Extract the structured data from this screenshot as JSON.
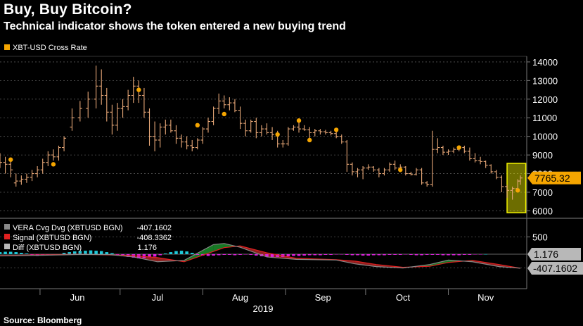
{
  "page": {
    "title": "Buy, Buy Bitcoin?",
    "subtitle": "Technical indicator shows the token entered a new buying trend",
    "source": "Source: Bloomberg"
  },
  "colors": {
    "background": "#000000",
    "candle": "#e8a878",
    "signal_dot": "#f5a500",
    "price_tag": "#f5a500",
    "highlight": "#f2f200",
    "pos_hist": "#1fc8d8",
    "neg_hist": "#e020e0",
    "vera_line": "#888888",
    "signal_line": "#e02020",
    "fill_bull": "#1fa030",
    "fill_bear": "#c02a2a",
    "gray_tag": "#b8b8b8"
  },
  "chart_data": [
    {
      "type": "candlestick",
      "legend": "XBT-USD Cross Rate",
      "last_value_label": "7765.32",
      "y_ticks": [
        6000,
        7000,
        8000,
        9000,
        10000,
        11000,
        12000,
        13000,
        14000
      ],
      "ylim": [
        5600,
        14300
      ],
      "x_month_labels": [
        "Jun",
        "Jul",
        "Aug",
        "Sep",
        "Oct",
        "Nov"
      ],
      "x_year_label": "2019",
      "x_range": [
        "2019-05-17",
        "2019-11-28"
      ],
      "candles": [
        {
          "d": "2019-05-17",
          "o": 8700,
          "h": 9100,
          "l": 8300,
          "c": 8600
        },
        {
          "d": "2019-05-19",
          "o": 8600,
          "h": 8900,
          "l": 8000,
          "c": 8500
        },
        {
          "d": "2019-05-21",
          "o": 8500,
          "h": 8700,
          "l": 7800,
          "c": 8200
        },
        {
          "d": "2019-05-23",
          "o": 7500,
          "h": 8000,
          "l": 7300,
          "c": 7600
        },
        {
          "d": "2019-05-25",
          "o": 7600,
          "h": 7900,
          "l": 7400,
          "c": 7700
        },
        {
          "d": "2019-05-27",
          "o": 7700,
          "h": 8000,
          "l": 7500,
          "c": 7800
        },
        {
          "d": "2019-05-29",
          "o": 7800,
          "h": 8200,
          "l": 7600,
          "c": 8000
        },
        {
          "d": "2019-05-31",
          "o": 8000,
          "h": 8400,
          "l": 7800,
          "c": 8200
        },
        {
          "d": "2019-06-02",
          "o": 8200,
          "h": 8800,
          "l": 8000,
          "c": 8600
        },
        {
          "d": "2019-06-04",
          "o": 8600,
          "h": 9200,
          "l": 8400,
          "c": 9000
        },
        {
          "d": "2019-06-06",
          "o": 9000,
          "h": 9300,
          "l": 8700,
          "c": 8900
        },
        {
          "d": "2019-06-08",
          "o": 8900,
          "h": 9500,
          "l": 8700,
          "c": 9400
        },
        {
          "d": "2019-06-10",
          "o": 9400,
          "h": 10000,
          "l": 9200,
          "c": 9900
        },
        {
          "d": "2019-06-13",
          "o": 10500,
          "h": 11500,
          "l": 10300,
          "c": 11000
        },
        {
          "d": "2019-06-16",
          "o": 11000,
          "h": 11900,
          "l": 10800,
          "c": 11500
        },
        {
          "d": "2019-06-19",
          "o": 11500,
          "h": 12400,
          "l": 11000,
          "c": 12000
        },
        {
          "d": "2019-06-22",
          "o": 12000,
          "h": 13800,
          "l": 11500,
          "c": 12700
        },
        {
          "d": "2019-06-24",
          "o": 12700,
          "h": 13600,
          "l": 11700,
          "c": 12200
        },
        {
          "d": "2019-06-26",
          "o": 12200,
          "h": 12600,
          "l": 10800,
          "c": 11300
        },
        {
          "d": "2019-06-28",
          "o": 11300,
          "h": 11700,
          "l": 10100,
          "c": 10600
        },
        {
          "d": "2019-06-30",
          "o": 10600,
          "h": 11800,
          "l": 10300,
          "c": 11500
        },
        {
          "d": "2019-07-02",
          "o": 11500,
          "h": 12000,
          "l": 11000,
          "c": 11600
        },
        {
          "d": "2019-07-04",
          "o": 11600,
          "h": 12500,
          "l": 11400,
          "c": 12200
        },
        {
          "d": "2019-07-06",
          "o": 12200,
          "h": 13200,
          "l": 11800,
          "c": 12700
        },
        {
          "d": "2019-07-08",
          "o": 12700,
          "h": 13000,
          "l": 11800,
          "c": 12200
        },
        {
          "d": "2019-07-10",
          "o": 12200,
          "h": 12600,
          "l": 11000,
          "c": 11300
        },
        {
          "d": "2019-07-12",
          "o": 11300,
          "h": 11500,
          "l": 9500,
          "c": 10000
        },
        {
          "d": "2019-07-14",
          "o": 10000,
          "h": 10800,
          "l": 9200,
          "c": 9800
        },
        {
          "d": "2019-07-16",
          "o": 9800,
          "h": 10700,
          "l": 9400,
          "c": 10500
        },
        {
          "d": "2019-07-18",
          "o": 10500,
          "h": 10900,
          "l": 10100,
          "c": 10600
        },
        {
          "d": "2019-07-20",
          "o": 10600,
          "h": 10900,
          "l": 10200,
          "c": 10300
        },
        {
          "d": "2019-07-22",
          "o": 10300,
          "h": 10600,
          "l": 9600,
          "c": 9900
        },
        {
          "d": "2019-07-24",
          "o": 9900,
          "h": 10100,
          "l": 9400,
          "c": 9700
        },
        {
          "d": "2019-07-26",
          "o": 9700,
          "h": 10000,
          "l": 9300,
          "c": 9500
        },
        {
          "d": "2019-07-28",
          "o": 9500,
          "h": 9800,
          "l": 9200,
          "c": 9400
        },
        {
          "d": "2019-07-30",
          "o": 9400,
          "h": 9900,
          "l": 9300,
          "c": 9800
        },
        {
          "d": "2019-08-01",
          "o": 9800,
          "h": 10500,
          "l": 9600,
          "c": 10400
        },
        {
          "d": "2019-08-03",
          "o": 10400,
          "h": 11000,
          "l": 10200,
          "c": 10800
        },
        {
          "d": "2019-08-05",
          "o": 10800,
          "h": 11600,
          "l": 10600,
          "c": 11500
        },
        {
          "d": "2019-08-07",
          "o": 11500,
          "h": 12300,
          "l": 11200,
          "c": 11900
        },
        {
          "d": "2019-08-09",
          "o": 11900,
          "h": 12200,
          "l": 11500,
          "c": 11700
        },
        {
          "d": "2019-08-11",
          "o": 11700,
          "h": 12100,
          "l": 11400,
          "c": 11800
        },
        {
          "d": "2019-08-13",
          "o": 11800,
          "h": 12000,
          "l": 11300,
          "c": 11400
        },
        {
          "d": "2019-08-15",
          "o": 11400,
          "h": 11600,
          "l": 10400,
          "c": 10700
        },
        {
          "d": "2019-08-17",
          "o": 10700,
          "h": 10900,
          "l": 10000,
          "c": 10300
        },
        {
          "d": "2019-08-19",
          "o": 10300,
          "h": 10900,
          "l": 10200,
          "c": 10800
        },
        {
          "d": "2019-08-21",
          "o": 10800,
          "h": 11000,
          "l": 9900,
          "c": 10200
        },
        {
          "d": "2019-08-23",
          "o": 10200,
          "h": 10600,
          "l": 10000,
          "c": 10400
        },
        {
          "d": "2019-08-25",
          "o": 10400,
          "h": 10700,
          "l": 10100,
          "c": 10200
        },
        {
          "d": "2019-08-27",
          "o": 10200,
          "h": 10500,
          "l": 9800,
          "c": 10100
        },
        {
          "d": "2019-08-29",
          "o": 10100,
          "h": 10300,
          "l": 9400,
          "c": 9600
        },
        {
          "d": "2019-08-31",
          "o": 9600,
          "h": 9800,
          "l": 9400,
          "c": 9600
        },
        {
          "d": "2019-09-02",
          "o": 9600,
          "h": 10500,
          "l": 9500,
          "c": 10400
        },
        {
          "d": "2019-09-04",
          "o": 10400,
          "h": 10600,
          "l": 10300,
          "c": 10500
        },
        {
          "d": "2019-09-06",
          "o": 10500,
          "h": 10900,
          "l": 10200,
          "c": 10400
        },
        {
          "d": "2019-09-08",
          "o": 10400,
          "h": 10600,
          "l": 10300,
          "c": 10350
        },
        {
          "d": "2019-09-10",
          "o": 10350,
          "h": 10500,
          "l": 9900,
          "c": 10200
        },
        {
          "d": "2019-09-12",
          "o": 10200,
          "h": 10400,
          "l": 10000,
          "c": 10300
        },
        {
          "d": "2019-09-14",
          "o": 10300,
          "h": 10400,
          "l": 10100,
          "c": 10250
        },
        {
          "d": "2019-09-16",
          "o": 10250,
          "h": 10350,
          "l": 10100,
          "c": 10200
        },
        {
          "d": "2019-09-18",
          "o": 10200,
          "h": 10300,
          "l": 10050,
          "c": 10150
        },
        {
          "d": "2019-09-20",
          "o": 10150,
          "h": 10250,
          "l": 9900,
          "c": 10000
        },
        {
          "d": "2019-09-22",
          "o": 10000,
          "h": 10100,
          "l": 9600,
          "c": 9700
        },
        {
          "d": "2019-09-24",
          "o": 9700,
          "h": 9800,
          "l": 8100,
          "c": 8500
        },
        {
          "d": "2019-09-26",
          "o": 8500,
          "h": 8600,
          "l": 7900,
          "c": 8100
        },
        {
          "d": "2019-09-28",
          "o": 8100,
          "h": 8300,
          "l": 7800,
          "c": 8200
        },
        {
          "d": "2019-09-30",
          "o": 8200,
          "h": 8400,
          "l": 7700,
          "c": 8300
        },
        {
          "d": "2019-10-02",
          "o": 8300,
          "h": 8500,
          "l": 8200,
          "c": 8350
        },
        {
          "d": "2019-10-04",
          "o": 8350,
          "h": 8400,
          "l": 8100,
          "c": 8200
        },
        {
          "d": "2019-10-06",
          "o": 8200,
          "h": 8300,
          "l": 7800,
          "c": 8000
        },
        {
          "d": "2019-10-08",
          "o": 8000,
          "h": 8300,
          "l": 7900,
          "c": 8200
        },
        {
          "d": "2019-10-10",
          "o": 8200,
          "h": 8600,
          "l": 8100,
          "c": 8500
        },
        {
          "d": "2019-10-12",
          "o": 8500,
          "h": 8700,
          "l": 8200,
          "c": 8300
        },
        {
          "d": "2019-10-14",
          "o": 8300,
          "h": 8500,
          "l": 8200,
          "c": 8350
        },
        {
          "d": "2019-10-16",
          "o": 8350,
          "h": 8400,
          "l": 7900,
          "c": 8000
        },
        {
          "d": "2019-10-18",
          "o": 8000,
          "h": 8100,
          "l": 7900,
          "c": 7950
        },
        {
          "d": "2019-10-20",
          "o": 7950,
          "h": 8300,
          "l": 7900,
          "c": 8200
        },
        {
          "d": "2019-10-22",
          "o": 8200,
          "h": 8300,
          "l": 7400,
          "c": 7500
        },
        {
          "d": "2019-10-24",
          "o": 7500,
          "h": 7600,
          "l": 7300,
          "c": 7400
        },
        {
          "d": "2019-10-26",
          "o": 7400,
          "h": 10300,
          "l": 7300,
          "c": 9300
        },
        {
          "d": "2019-10-28",
          "o": 9300,
          "h": 9900,
          "l": 9100,
          "c": 9400
        },
        {
          "d": "2019-10-30",
          "o": 9400,
          "h": 9500,
          "l": 9000,
          "c": 9150
        },
        {
          "d": "2019-11-01",
          "o": 9150,
          "h": 9300,
          "l": 9000,
          "c": 9200
        },
        {
          "d": "2019-11-03",
          "o": 9200,
          "h": 9400,
          "l": 9100,
          "c": 9300
        },
        {
          "d": "2019-11-05",
          "o": 9300,
          "h": 9500,
          "l": 9200,
          "c": 9400
        },
        {
          "d": "2019-11-07",
          "o": 9400,
          "h": 9500,
          "l": 9100,
          "c": 9200
        },
        {
          "d": "2019-11-09",
          "o": 9200,
          "h": 9400,
          "l": 8700,
          "c": 8800
        },
        {
          "d": "2019-11-11",
          "o": 8800,
          "h": 9100,
          "l": 8600,
          "c": 8700
        },
        {
          "d": "2019-11-13",
          "o": 8700,
          "h": 8900,
          "l": 8500,
          "c": 8650
        },
        {
          "d": "2019-11-15",
          "o": 8650,
          "h": 8700,
          "l": 8300,
          "c": 8450
        },
        {
          "d": "2019-11-17",
          "o": 8450,
          "h": 8500,
          "l": 8000,
          "c": 8100
        },
        {
          "d": "2019-11-19",
          "o": 8100,
          "h": 8200,
          "l": 7700,
          "c": 7800
        },
        {
          "d": "2019-11-21",
          "o": 7800,
          "h": 7900,
          "l": 7000,
          "c": 7300
        },
        {
          "d": "2019-11-23",
          "o": 7300,
          "h": 7400,
          "l": 6700,
          "c": 7100
        },
        {
          "d": "2019-11-25",
          "o": 7100,
          "h": 7300,
          "l": 6600,
          "c": 7200
        },
        {
          "d": "2019-11-27",
          "o": 7200,
          "h": 7700,
          "l": 7100,
          "c": 7600
        },
        {
          "d": "2019-11-28",
          "o": 7600,
          "h": 7900,
          "l": 7400,
          "c": 7765.32
        }
      ],
      "signal_dots": [
        {
          "d": "2019-05-21",
          "v": 8750
        },
        {
          "d": "2019-06-06",
          "v": 8500
        },
        {
          "d": "2019-07-08",
          "v": 12500
        },
        {
          "d": "2019-07-30",
          "v": 10600
        },
        {
          "d": "2019-08-09",
          "v": 11200
        },
        {
          "d": "2019-08-29",
          "v": 10100
        },
        {
          "d": "2019-09-06",
          "v": 10850
        },
        {
          "d": "2019-09-10",
          "v": 9800
        },
        {
          "d": "2019-09-20",
          "v": 10350
        },
        {
          "d": "2019-10-14",
          "v": 8200
        },
        {
          "d": "2019-11-05",
          "v": 9400
        },
        {
          "d": "2019-11-27",
          "v": 7100
        }
      ],
      "highlight_range": {
        "d0": "2019-11-23",
        "d1": "2019-11-30",
        "lo": 5900,
        "hi": 8550
      }
    },
    {
      "type": "line",
      "y_ticks": [
        500
      ],
      "ylim": [
        -1000,
        1000
      ],
      "legend": [
        {
          "name": "VERA Cvg Dvg (XBTUSD BGN)",
          "value": "-407.1602"
        },
        {
          "name": "Signal (XBTUSD BGN)",
          "value": "-408.3362"
        },
        {
          "name": "Diff (XBTUSD BGN)",
          "value": "1.176"
        }
      ],
      "tags": [
        "1.176",
        "-407.1602"
      ],
      "series": [
        {
          "d": [
            "2019-05-17",
            "2019-06-02",
            "2019-06-15",
            "2019-06-27",
            "2019-07-06",
            "2019-07-15",
            "2019-07-25",
            "2019-08-05",
            "2019-08-09",
            "2019-08-15",
            "2019-08-25",
            "2019-09-05",
            "2019-09-20",
            "2019-09-27",
            "2019-10-05",
            "2019-10-15",
            "2019-10-25",
            "2019-11-01",
            "2019-11-10",
            "2019-11-20",
            "2019-11-28"
          ],
          "v": [
            -50,
            -30,
            -10,
            -10,
            -80,
            -220,
            -180,
            280,
            310,
            200,
            -80,
            -150,
            -170,
            -280,
            -360,
            -400,
            -300,
            -170,
            -220,
            -360,
            -407.1602
          ]
        },
        {
          "d": [
            "2019-05-17",
            "2019-06-02",
            "2019-06-15",
            "2019-06-27",
            "2019-07-06",
            "2019-07-15",
            "2019-07-25",
            "2019-08-05",
            "2019-08-09",
            "2019-08-15",
            "2019-08-25",
            "2019-09-05",
            "2019-09-20",
            "2019-09-27",
            "2019-10-05",
            "2019-10-15",
            "2019-10-25",
            "2019-11-01",
            "2019-11-10",
            "2019-11-20",
            "2019-11-28"
          ],
          "v": [
            -40,
            -20,
            0,
            -20,
            -40,
            -100,
            -220,
            80,
            190,
            240,
            40,
            -120,
            -160,
            -200,
            -300,
            -380,
            -350,
            -240,
            -180,
            -300,
            -408.3362
          ]
        }
      ],
      "histogram": {
        "d0": "2019-05-17",
        "step_days": 2,
        "v": [
          60,
          70,
          70,
          60,
          40,
          20,
          -40,
          -50,
          -40,
          -30,
          -30,
          -20,
          40,
          60,
          80,
          90,
          100,
          110,
          100,
          90,
          60,
          30,
          -20,
          -60,
          -80,
          -100,
          -120,
          -110,
          -90,
          -70,
          -30,
          20,
          60,
          90,
          100,
          80,
          40,
          -20,
          -40,
          -50,
          -40,
          -30,
          -20,
          -20,
          -30,
          -20,
          -10,
          -20,
          -40,
          -60,
          -70,
          -80,
          -80,
          -80,
          -60,
          -50,
          -50,
          -40,
          -30,
          -30,
          -30,
          -20,
          -20,
          -10,
          -10,
          -20,
          -30,
          -30,
          -40,
          -40,
          -30,
          -30,
          -30,
          -20,
          -20,
          -20,
          -10,
          -20,
          -30,
          -30,
          -20,
          -20,
          -20,
          -30,
          -30,
          -30,
          -30,
          -20,
          -20,
          -10,
          -10,
          1
        ]
      }
    }
  ]
}
